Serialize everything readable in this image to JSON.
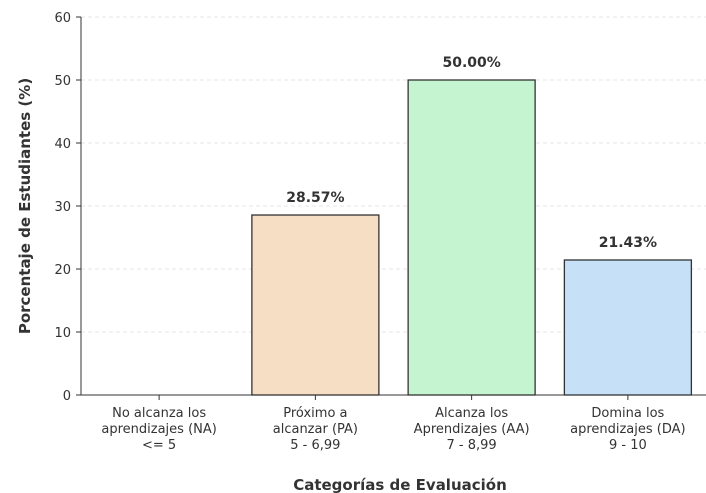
{
  "chart_data": {
    "type": "bar",
    "xlabel": "Categorías de Evaluación",
    "ylabel": "Porcentaje de Estudiantes (%)",
    "ylim": [
      0,
      60
    ],
    "yticks": [
      0,
      10,
      20,
      30,
      40,
      50,
      60
    ],
    "grid": "horizontal dashed",
    "categories": [
      [
        "No alcanza los",
        "aprendizajes (NA)",
        "<= 5"
      ],
      [
        "Próximo a",
        "alcanzar (PA)",
        "5 - 6,99"
      ],
      [
        "Alcanza los",
        "Aprendizajes (AA)",
        "7 - 8,99"
      ],
      [
        "Domina los",
        "aprendizajes (DA)",
        "9 - 10"
      ]
    ],
    "values": [
      0,
      28.57,
      50.0,
      21.43
    ],
    "data_labels": [
      "",
      "28.57%",
      "50.00%",
      "21.43%"
    ],
    "colors": [
      "#ffcdd2",
      "#f5dec3",
      "#c4f5d0",
      "#c5e0f7"
    ],
    "edge_color": "#333333"
  }
}
